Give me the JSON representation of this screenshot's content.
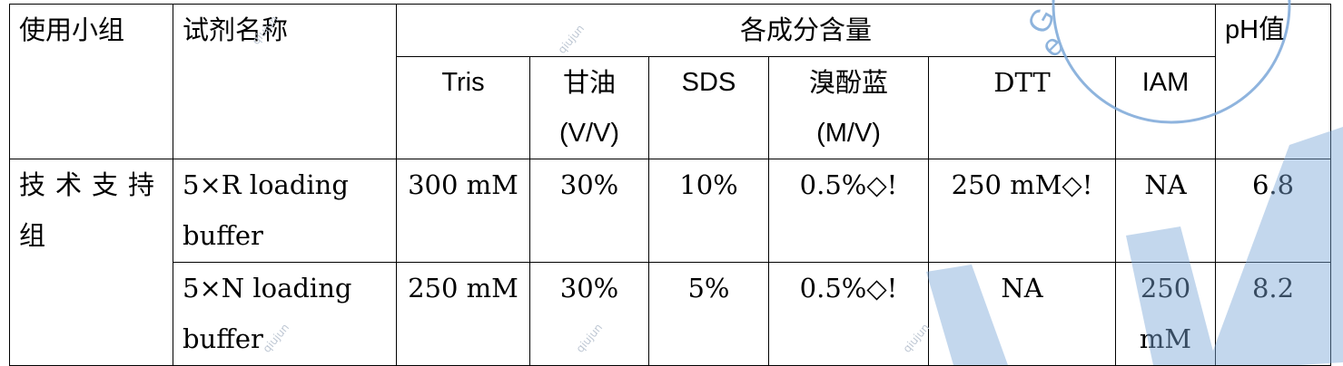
{
  "table": {
    "headers": {
      "group": "使用小组",
      "reagent": "试剂名称",
      "components": "各成分含量",
      "ph": "pH值",
      "tris": "Tris",
      "glycerol": "甘油",
      "glycerol_unit": "(V/V)",
      "sds": "SDS",
      "bromophenol": "溴酚蓝",
      "bromophenol_unit": "(M/V)",
      "dtt": "DTT",
      "iam": "IAM"
    },
    "group_name_line1": "技术支持",
    "group_name_line2": "组",
    "rows": [
      {
        "reagent_line1": "5×R loading",
        "reagent_line2": "buffer",
        "tris": "300 mM",
        "glycerol": "30%",
        "sds": "10%",
        "bromophenol": "0.5%◇!",
        "dtt": "250 mM◇!",
        "iam": "NA",
        "iam_line2": "",
        "ph": "6.8"
      },
      {
        "reagent_line1": "5×N loading",
        "reagent_line2": "buffer",
        "tris": "250 mM",
        "glycerol": "30%",
        "sds": "5%",
        "bromophenol": "0.5%◇!",
        "dtt": "NA",
        "iam": "250",
        "iam_line2": "mM",
        "ph": "8.2"
      }
    ]
  },
  "watermark": {
    "repeated_text": "qiujun",
    "accent_color": "#7ba7d8"
  }
}
